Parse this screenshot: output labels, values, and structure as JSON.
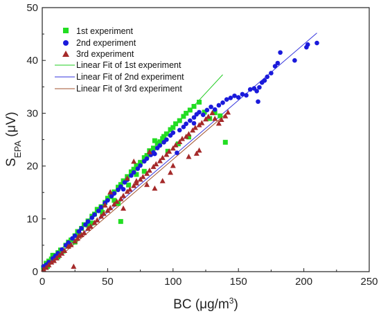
{
  "chart_data": {
    "type": "scatter",
    "title": "",
    "xlabel": "BC (μg/m³)",
    "xlabel_main": "BC (μg/m",
    "xlabel_sup": "3",
    "xlabel_end": ")",
    "ylabel_main": "S",
    "ylabel_sub": "EPA",
    "ylabel_end": " (μV)",
    "xlim": [
      0,
      250
    ],
    "ylim": [
      0,
      50
    ],
    "xticks": [
      0,
      50,
      100,
      150,
      200,
      250
    ],
    "yticks": [
      0,
      10,
      20,
      30,
      40,
      50
    ],
    "grid": false,
    "legend_position": "top-left",
    "series": [
      {
        "name": "1st experiment",
        "marker": "square",
        "color": "#22dd22",
        "points": [
          [
            1,
            0.8
          ],
          [
            3,
            1.6
          ],
          [
            5,
            2.0
          ],
          [
            7,
            2.4
          ],
          [
            8,
            3.1
          ],
          [
            10,
            3.0
          ],
          [
            12,
            3.6
          ],
          [
            14,
            4.1
          ],
          [
            15,
            3.9
          ],
          [
            18,
            5.0
          ],
          [
            20,
            5.6
          ],
          [
            22,
            6.0
          ],
          [
            25,
            6.8
          ],
          [
            27,
            7.6
          ],
          [
            30,
            8.2
          ],
          [
            32,
            8.9
          ],
          [
            35,
            9.6
          ],
          [
            38,
            10.5
          ],
          [
            40,
            10.9
          ],
          [
            42,
            11.8
          ],
          [
            45,
            12.3
          ],
          [
            48,
            13.1
          ],
          [
            50,
            13.9
          ],
          [
            52,
            14.2
          ],
          [
            55,
            15.1
          ],
          [
            58,
            16.0
          ],
          [
            60,
            16.5
          ],
          [
            62,
            17.2
          ],
          [
            65,
            18.0
          ],
          [
            68,
            18.9
          ],
          [
            70,
            19.4
          ],
          [
            72,
            20.1
          ],
          [
            75,
            20.7
          ],
          [
            78,
            21.6
          ],
          [
            80,
            22.0
          ],
          [
            82,
            22.9
          ],
          [
            85,
            23.4
          ],
          [
            88,
            24.3
          ],
          [
            90,
            24.6
          ],
          [
            93,
            25.6
          ],
          [
            95,
            26.1
          ],
          [
            98,
            26.9
          ],
          [
            100,
            27.3
          ],
          [
            102,
            28.0
          ],
          [
            105,
            28.6
          ],
          [
            108,
            29.4
          ],
          [
            110,
            30.0
          ],
          [
            113,
            30.6
          ],
          [
            116,
            31.3
          ],
          [
            120,
            32.1
          ],
          [
            124,
            30.2
          ],
          [
            128,
            29.0
          ],
          [
            132,
            30.1
          ],
          [
            136,
            29.5
          ],
          [
            140,
            24.5
          ],
          [
            112,
            25.5
          ],
          [
            104,
            24.2
          ],
          [
            96,
            22.8
          ],
          [
            92,
            25.2
          ],
          [
            86,
            24.8
          ],
          [
            78,
            19.0
          ],
          [
            72,
            18.4
          ],
          [
            66,
            16.4
          ],
          [
            58,
            12.9
          ],
          [
            46,
            11.2
          ],
          [
            38,
            9.2
          ],
          [
            28,
            7.0
          ],
          [
            20,
            5.1
          ],
          [
            12,
            2.8
          ],
          [
            4,
            1.0
          ],
          [
            60,
            9.5
          ],
          [
            55,
            13.5
          ],
          [
            45,
            12.0
          ],
          [
            35,
            8.8
          ],
          [
            25,
            5.6
          ],
          [
            16,
            3.9
          ]
        ]
      },
      {
        "name": "2nd experiment",
        "marker": "circle",
        "color": "#1a1adb",
        "points": [
          [
            1,
            1.0
          ],
          [
            3,
            1.3
          ],
          [
            5,
            1.8
          ],
          [
            8,
            2.5
          ],
          [
            10,
            3.0
          ],
          [
            12,
            3.5
          ],
          [
            15,
            4.2
          ],
          [
            18,
            5.0
          ],
          [
            20,
            5.5
          ],
          [
            23,
            6.3
          ],
          [
            25,
            6.8
          ],
          [
            28,
            7.6
          ],
          [
            30,
            8.2
          ],
          [
            33,
            8.9
          ],
          [
            35,
            9.5
          ],
          [
            38,
            10.2
          ],
          [
            40,
            10.8
          ],
          [
            43,
            11.5
          ],
          [
            45,
            12.2
          ],
          [
            48,
            13.0
          ],
          [
            50,
            13.5
          ],
          [
            53,
            14.3
          ],
          [
            55,
            14.8
          ],
          [
            58,
            15.5
          ],
          [
            60,
            16.1
          ],
          [
            63,
            16.9
          ],
          [
            65,
            17.4
          ],
          [
            68,
            18.2
          ],
          [
            70,
            18.8
          ],
          [
            73,
            19.5
          ],
          [
            75,
            20.1
          ],
          [
            78,
            20.9
          ],
          [
            80,
            21.4
          ],
          [
            83,
            22.1
          ],
          [
            85,
            22.6
          ],
          [
            88,
            23.4
          ],
          [
            90,
            23.9
          ],
          [
            93,
            24.5
          ],
          [
            95,
            25.0
          ],
          [
            98,
            25.8
          ],
          [
            100,
            26.3
          ],
          [
            103,
            22.5
          ],
          [
            105,
            26.8
          ],
          [
            108,
            27.4
          ],
          [
            110,
            28.0
          ],
          [
            113,
            28.6
          ],
          [
            116,
            29.2
          ],
          [
            118,
            29.8
          ],
          [
            120,
            30.2
          ],
          [
            123,
            29.7
          ],
          [
            126,
            30.6
          ],
          [
            129,
            31.2
          ],
          [
            132,
            30.7
          ],
          [
            135,
            31.5
          ],
          [
            138,
            32.0
          ],
          [
            141,
            32.6
          ],
          [
            144,
            32.9
          ],
          [
            147,
            33.3
          ],
          [
            150,
            33.0
          ],
          [
            153,
            33.6
          ],
          [
            156,
            33.4
          ],
          [
            159,
            34.5
          ],
          [
            162,
            34.7
          ],
          [
            164,
            34.2
          ],
          [
            166,
            34.9
          ],
          [
            168,
            35.8
          ],
          [
            170,
            36.2
          ],
          [
            172,
            36.9
          ],
          [
            175,
            37.6
          ],
          [
            178,
            38.9
          ],
          [
            180,
            39.5
          ],
          [
            182,
            41.5
          ],
          [
            193,
            40.0
          ],
          [
            202,
            42.5
          ],
          [
            203,
            43.0
          ],
          [
            210,
            43.3
          ],
          [
            165,
            32.2
          ],
          [
            62,
            15.6
          ],
          [
            86,
            22.3
          ],
          [
            116,
            28.1
          ]
        ]
      },
      {
        "name": "3rd experiment",
        "marker": "triangle",
        "color": "#a52a2a",
        "points": [
          [
            1,
            0.5
          ],
          [
            3,
            0.8
          ],
          [
            5,
            1.3
          ],
          [
            7,
            1.8
          ],
          [
            9,
            2.1
          ],
          [
            11,
            2.6
          ],
          [
            13,
            3.1
          ],
          [
            15,
            3.5
          ],
          [
            17,
            4.0
          ],
          [
            20,
            4.8
          ],
          [
            22,
            5.1
          ],
          [
            24,
            1.0
          ],
          [
            25,
            5.8
          ],
          [
            27,
            6.3
          ],
          [
            30,
            7.0
          ],
          [
            32,
            7.4
          ],
          [
            35,
            8.2
          ],
          [
            37,
            8.6
          ],
          [
            40,
            9.3
          ],
          [
            42,
            9.8
          ],
          [
            45,
            10.5
          ],
          [
            47,
            11.0
          ],
          [
            50,
            11.6
          ],
          [
            52,
            12.1
          ],
          [
            55,
            12.8
          ],
          [
            57,
            13.3
          ],
          [
            60,
            13.8
          ],
          [
            62,
            14.4
          ],
          [
            65,
            15.2
          ],
          [
            67,
            15.6
          ],
          [
            70,
            16.3
          ],
          [
            72,
            16.8
          ],
          [
            75,
            17.5
          ],
          [
            77,
            18.0
          ],
          [
            80,
            18.6
          ],
          [
            82,
            19.2
          ],
          [
            85,
            19.9
          ],
          [
            87,
            20.4
          ],
          [
            90,
            21.0
          ],
          [
            92,
            21.6
          ],
          [
            95,
            22.2
          ],
          [
            97,
            22.8
          ],
          [
            100,
            23.4
          ],
          [
            102,
            24.0
          ],
          [
            105,
            24.6
          ],
          [
            107,
            25.2
          ],
          [
            110,
            25.6
          ],
          [
            112,
            26.1
          ],
          [
            115,
            26.8
          ],
          [
            117,
            27.3
          ],
          [
            120,
            27.8
          ],
          [
            122,
            28.2
          ],
          [
            125,
            28.9
          ],
          [
            127,
            29.4
          ],
          [
            130,
            30.1
          ],
          [
            132,
            29.0
          ],
          [
            135,
            28.1
          ],
          [
            137,
            28.8
          ],
          [
            140,
            29.5
          ],
          [
            142,
            30.2
          ],
          [
            82,
            22.7
          ],
          [
            70,
            20.9
          ],
          [
            52,
            15.1
          ],
          [
            65,
            17.7
          ],
          [
            98,
            18.8
          ],
          [
            92,
            17.2
          ],
          [
            100,
            20.1
          ],
          [
            120,
            23.0
          ],
          [
            118,
            22.4
          ],
          [
            112,
            21.8
          ],
          [
            80,
            16.5
          ],
          [
            62,
            12.0
          ],
          [
            86,
            15.8
          ],
          [
            72,
            17.2
          ],
          [
            28,
            6.8
          ],
          [
            48,
            12.6
          ]
        ]
      }
    ],
    "fits": [
      {
        "name": "Linear Fit of 1st experiment",
        "color": "#22cc22",
        "x": [
          0,
          138
        ],
        "y": [
          0.4,
          37.3
        ]
      },
      {
        "name": "Linear Fit of 2nd experiment",
        "color": "#3333dd",
        "x": [
          0,
          210
        ],
        "y": [
          0.6,
          45.2
        ]
      },
      {
        "name": "Linear Fit of 3rd experiment",
        "color": "#a0522d",
        "x": [
          0,
          142
        ],
        "y": [
          0.0,
          30.2
        ]
      }
    ]
  }
}
